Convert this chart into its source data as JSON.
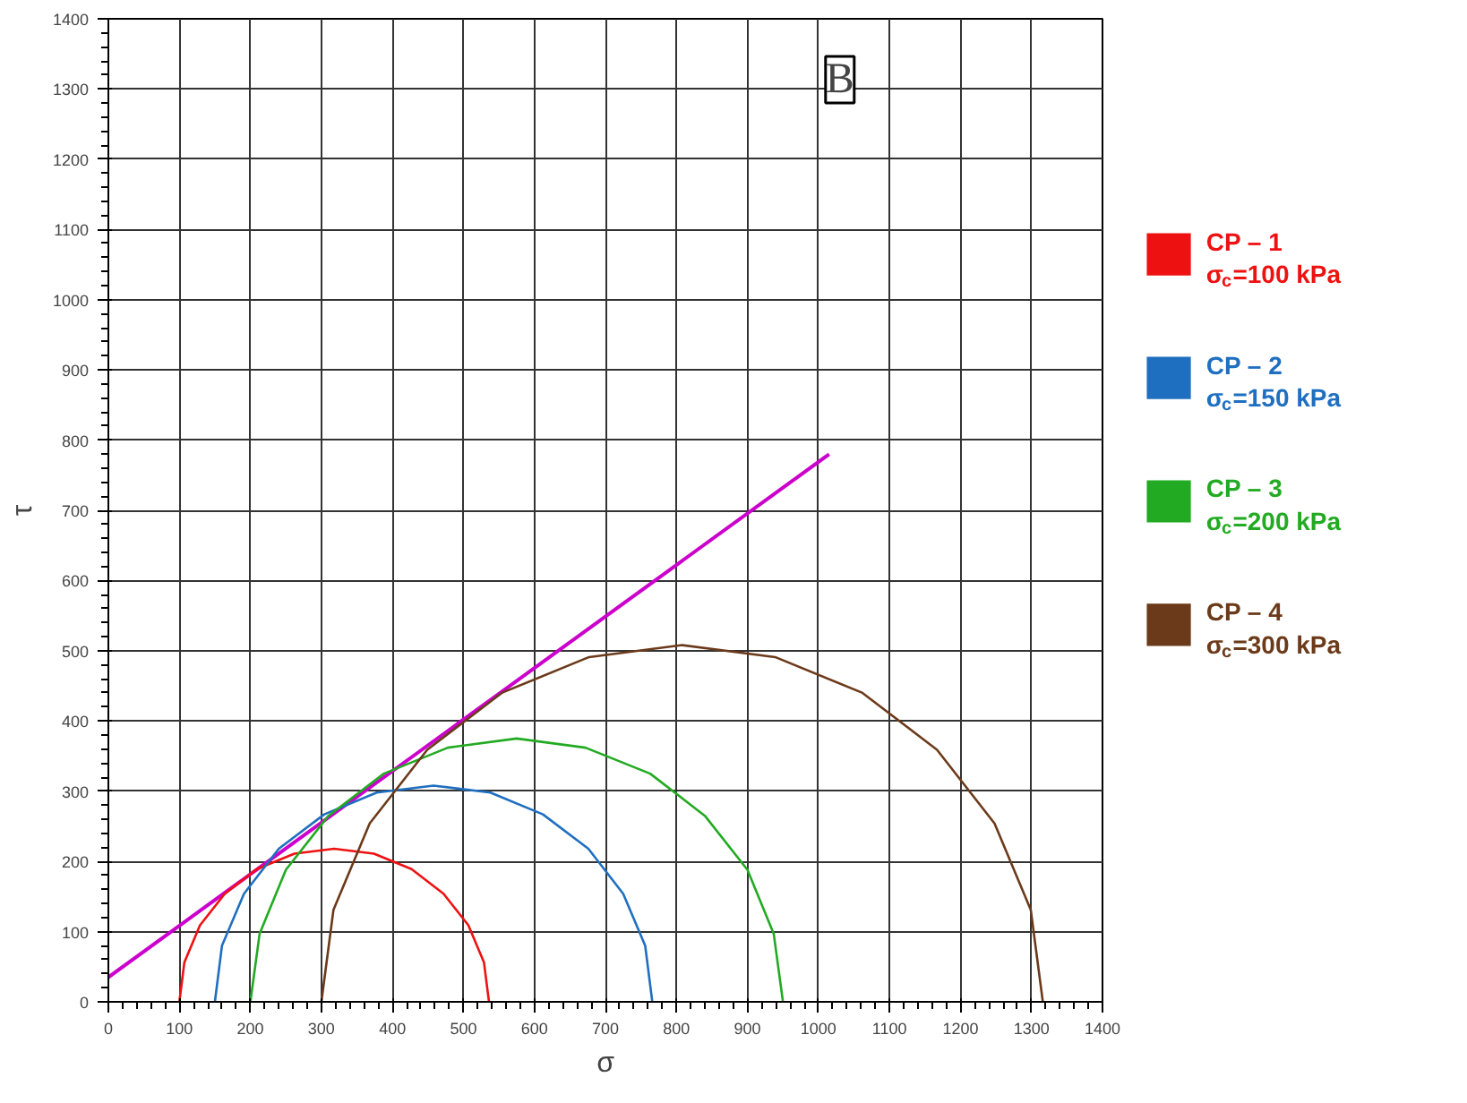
{
  "chart_data": {
    "type": "line",
    "xlabel": "σ",
    "ylabel": "τ",
    "xlim": [
      0,
      1400
    ],
    "ylim": [
      0,
      1400
    ],
    "xticks": [
      0,
      100,
      200,
      300,
      400,
      500,
      600,
      700,
      800,
      900,
      1000,
      1100,
      1200,
      1300,
      1400
    ],
    "yticks": [
      0,
      100,
      200,
      300,
      400,
      500,
      600,
      700,
      800,
      900,
      1000,
      1100,
      1200,
      1300,
      1400
    ],
    "grid": true,
    "legend": "right",
    "annotations": [
      "B"
    ],
    "series": [
      {
        "name": "CP – 1\nσ$_{c}$=100 kPa",
        "color": "#ee1111",
        "x": [
          100,
          107,
          129,
          164,
          209,
          262,
          318,
          374,
          427,
          472,
          507,
          529,
          536
        ],
        "values": [
          0,
          56,
          109,
          154,
          189,
          211,
          218,
          211,
          189,
          154,
          109,
          56,
          0
        ]
      },
      {
        "name": "CP – 2\nσ$_{c}$=150 kPa",
        "color": "#1f6fc0",
        "x": [
          150,
          160,
          191,
          240,
          304,
          378,
          458,
          538,
          612,
          676,
          725,
          756,
          766
        ],
        "values": [
          0,
          80,
          154,
          218,
          267,
          298,
          308,
          298,
          267,
          218,
          154,
          80,
          0
        ]
      },
      {
        "name": "CP – 3\nσ$_{c}$=200 kPa",
        "color": "#22aa22",
        "x": [
          200,
          213,
          250,
          310,
          388,
          478,
          575,
          672,
          763,
          840,
          900,
          937,
          950
        ],
        "values": [
          0,
          97,
          188,
          265,
          325,
          362,
          375,
          362,
          325,
          265,
          188,
          97,
          0
        ]
      },
      {
        "name": "CP – 4\nσ$_{c}$=300 kPa",
        "color": "#6b3a1a",
        "x": [
          300,
          317,
          368,
          449,
          554,
          677,
          808,
          939,
          1062,
          1167,
          1248,
          1299,
          1316
        ],
        "values": [
          0,
          131,
          254,
          359,
          440,
          491,
          508,
          491,
          440,
          359,
          254,
          131,
          0
        ]
      },
      {
        "color": "#cc00cc",
        "x": [
          0,
          1015
        ],
        "values": [
          35,
          780
        ]
      }
    ]
  }
}
